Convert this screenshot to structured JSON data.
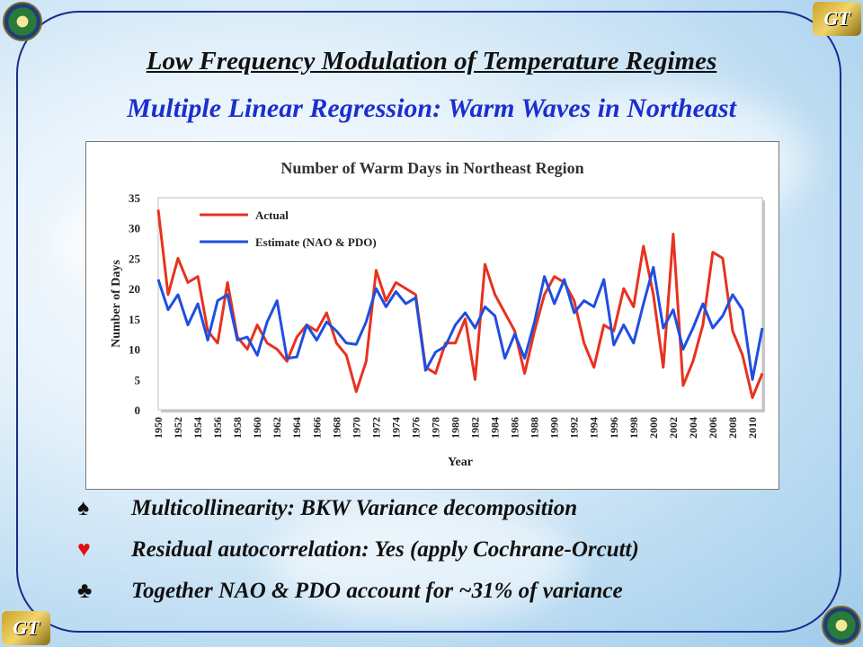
{
  "slide": {
    "title": "Low Frequency Modulation of Temperature Regimes",
    "subtitle": "Multiple Linear Regression: Warm Waves in Northeast",
    "bullets": [
      {
        "symbol": "♠",
        "text": "Multicollinearity:  BKW Variance decomposition",
        "color": "#111111"
      },
      {
        "symbol": "♥",
        "text": "Residual autocorrelation:  Yes (apply Cochrane-Orcutt)",
        "color": "#e01010"
      },
      {
        "symbol": "♣",
        "text": "Together NAO & PDO account for ~31% of variance",
        "color": "#111111"
      }
    ],
    "logos": {
      "doe_icon": "doe-seal",
      "gt_icon": "gt-yellowjacket",
      "gt_text": "GT"
    }
  },
  "chart_data": {
    "type": "line",
    "title": "Number of Warm Days in Northeast Region",
    "xlabel": "Year",
    "ylabel": "Number of Days",
    "ylim": [
      0,
      35
    ],
    "yticks": [
      0,
      5,
      10,
      15,
      20,
      25,
      30,
      35
    ],
    "x_range": [
      1950,
      2011
    ],
    "xticks": [
      1950,
      1952,
      1954,
      1956,
      1958,
      1960,
      1962,
      1964,
      1966,
      1968,
      1970,
      1972,
      1974,
      1976,
      1978,
      1980,
      1982,
      1984,
      1986,
      1988,
      1990,
      1992,
      1994,
      1996,
      1998,
      2000,
      2002,
      2004,
      2006,
      2008,
      2010
    ],
    "grid": false,
    "legend": "top-left",
    "series": [
      {
        "name": "Actual",
        "color": "#e8321e",
        "x": [
          1950,
          1951,
          1952,
          1953,
          1954,
          1955,
          1956,
          1957,
          1958,
          1959,
          1960,
          1961,
          1962,
          1963,
          1964,
          1965,
          1966,
          1967,
          1968,
          1969,
          1970,
          1971,
          1972,
          1973,
          1974,
          1975,
          1976,
          1977,
          1978,
          1979,
          1980,
          1981,
          1982,
          1983,
          1984,
          1985,
          1986,
          1987,
          1988,
          1989,
          1990,
          1991,
          1992,
          1993,
          1994,
          1995,
          1996,
          1997,
          1998,
          1999,
          2000,
          2001,
          2002,
          2003,
          2004,
          2005,
          2006,
          2007,
          2008,
          2009,
          2010,
          2011
        ],
        "values": [
          33,
          19,
          25,
          21,
          22,
          13,
          11,
          21,
          12,
          10,
          14,
          11,
          10,
          8,
          12,
          14,
          13,
          16,
          11,
          9,
          3,
          8,
          23,
          18,
          21,
          20,
          19,
          7,
          6,
          11,
          11,
          15,
          5,
          24,
          19,
          16,
          13,
          6,
          13,
          19,
          22,
          21,
          18,
          11,
          7,
          14,
          13,
          20,
          17,
          27,
          19,
          7,
          29,
          4,
          8,
          14,
          26,
          25,
          13,
          9,
          2,
          6
        ]
      },
      {
        "name": "Estimate (NAO & PDO)",
        "color": "#1f4fe0",
        "x": [
          1950,
          1951,
          1952,
          1953,
          1954,
          1955,
          1956,
          1957,
          1958,
          1959,
          1960,
          1961,
          1962,
          1963,
          1964,
          1965,
          1966,
          1967,
          1968,
          1969,
          1970,
          1971,
          1972,
          1973,
          1974,
          1975,
          1976,
          1977,
          1978,
          1979,
          1980,
          1981,
          1982,
          1983,
          1984,
          1985,
          1986,
          1987,
          1988,
          1989,
          1990,
          1991,
          1992,
          1993,
          1994,
          1995,
          1996,
          1997,
          1998,
          1999,
          2000,
          2001,
          2002,
          2003,
          2004,
          2005,
          2006,
          2007,
          2008,
          2009,
          2010,
          2011
        ],
        "values": [
          21.5,
          16.5,
          19,
          14,
          17.5,
          11.5,
          18,
          19,
          11.5,
          12,
          9,
          14.5,
          18,
          8.5,
          8.7,
          14,
          11.5,
          14.5,
          13,
          11,
          10.8,
          14.5,
          20,
          17,
          19.5,
          17.5,
          18.5,
          6.5,
          9.5,
          10.5,
          14,
          16,
          13.5,
          17,
          15.5,
          8.5,
          12.5,
          8.5,
          14.5,
          22,
          17.5,
          21.5,
          16,
          18,
          17,
          21.5,
          10.7,
          14,
          11,
          17.5,
          23.5,
          13.5,
          16.5,
          10,
          13.5,
          17.5,
          13.5,
          15.5,
          19,
          16.5,
          5,
          13.5
        ]
      }
    ]
  }
}
